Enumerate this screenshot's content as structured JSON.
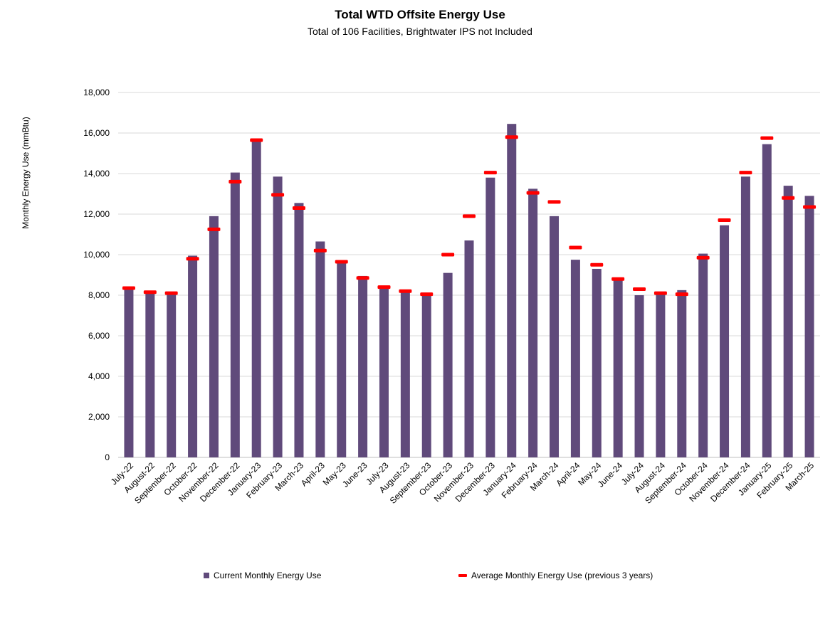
{
  "chart_data": {
    "type": "bar",
    "title": "Total WTD Offsite Energy Use",
    "subtitle": "Total of 106 Facilities, Brightwater IPS not Included",
    "ylabel": "Monthly Energy Use (mmBtu)",
    "xlabel": "",
    "ylim": [
      0,
      18000
    ],
    "yticks": [
      "0",
      "2,000",
      "4,000",
      "6,000",
      "8,000",
      "10,000",
      "12,000",
      "14,000",
      "16,000",
      "18,000"
    ],
    "grid": true,
    "legend_position": "bottom",
    "categories": [
      "July-22",
      "August-22",
      "September-22",
      "October-22",
      "November-22",
      "December-22",
      "January-23",
      "February-23",
      "March-23",
      "April-23",
      "May-23",
      "June-23",
      "July-23",
      "August-23",
      "September-23",
      "October-23",
      "November-23",
      "December-23",
      "January-24",
      "February-24",
      "March-24",
      "April-24",
      "May-24",
      "June-24",
      "July-24",
      "August-24",
      "September-24",
      "October-24",
      "November-24",
      "December-24",
      "January-25",
      "February-25",
      "March-25"
    ],
    "series": [
      {
        "name": "Current Monthly Energy Use",
        "type": "bar",
        "color": "#604a7b",
        "values": [
          8350,
          8150,
          8100,
          9950,
          11900,
          14050,
          15650,
          13850,
          12550,
          10650,
          9650,
          8950,
          8450,
          8200,
          8050,
          9100,
          10700,
          13800,
          16450,
          13250,
          11900,
          9750,
          9300,
          8800,
          8000,
          8150,
          8250,
          10050,
          11450,
          13850,
          15450,
          13400,
          12900
        ]
      },
      {
        "name": "Average Monthly Energy Use (previous 3 years)",
        "type": "marker",
        "color": "#ff0000",
        "values": [
          8350,
          8150,
          8100,
          9800,
          11250,
          13600,
          15650,
          12950,
          12300,
          10200,
          9650,
          8850,
          8400,
          8200,
          8050,
          10000,
          11900,
          14050,
          15800,
          13050,
          12600,
          10350,
          9500,
          8800,
          8300,
          8100,
          8050,
          9850,
          11700,
          14050,
          15750,
          12800,
          12350
        ]
      }
    ]
  }
}
